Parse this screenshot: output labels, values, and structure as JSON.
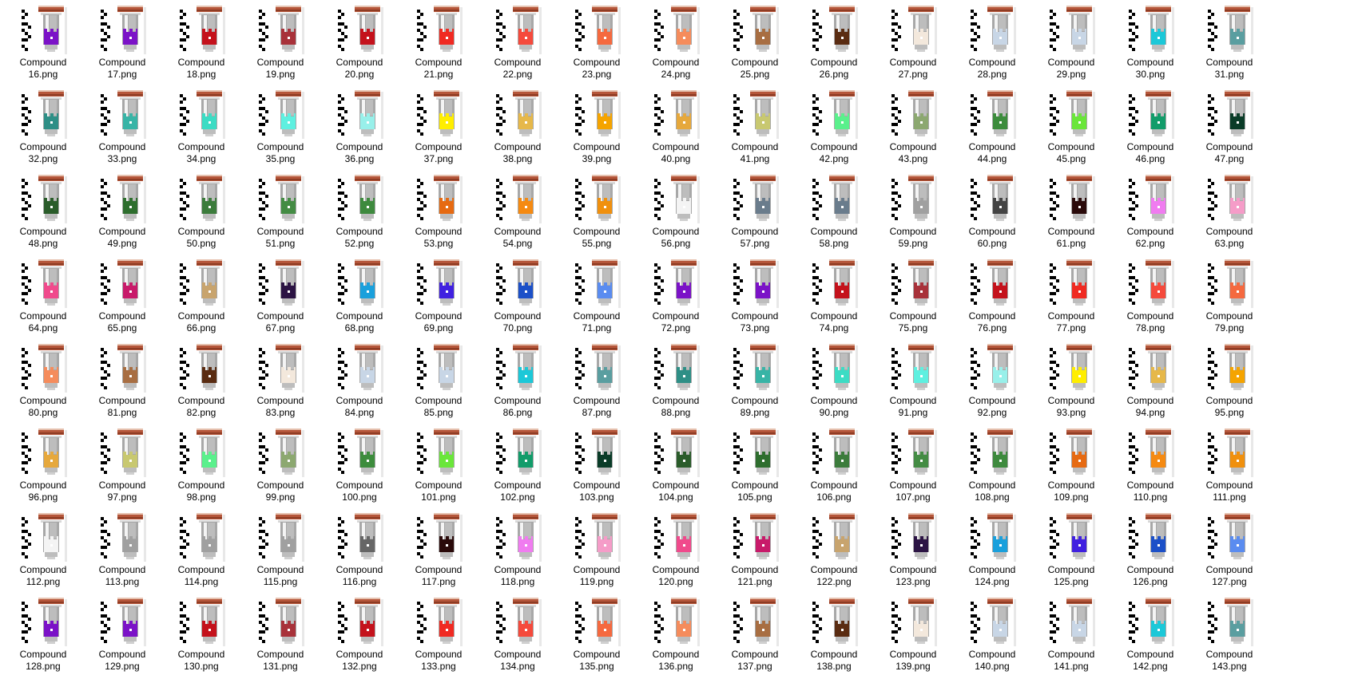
{
  "explorer": {
    "view_mode": "large-icons",
    "file_icon": "potion-vial-icon",
    "files": [
      {
        "line1": "Compound",
        "line2": "16.png",
        "liquid": "#7b12c7"
      },
      {
        "line1": "Compound",
        "line2": "17.png",
        "liquid": "#7b12c7"
      },
      {
        "line1": "Compound",
        "line2": "18.png",
        "liquid": "#c4121c"
      },
      {
        "line1": "Compound",
        "line2": "19.png",
        "liquid": "#a8323a"
      },
      {
        "line1": "Compound",
        "line2": "20.png",
        "liquid": "#c4121c"
      },
      {
        "line1": "Compound",
        "line2": "21.png",
        "liquid": "#f02a22"
      },
      {
        "line1": "Compound",
        "line2": "22.png",
        "liquid": "#f54a3c"
      },
      {
        "line1": "Compound",
        "line2": "23.png",
        "liquid": "#f5693f"
      },
      {
        "line1": "Compound",
        "line2": "24.png",
        "liquid": "#f58c5c"
      },
      {
        "line1": "Compound",
        "line2": "25.png",
        "liquid": "#a86e42"
      },
      {
        "line1": "Compound",
        "line2": "26.png",
        "liquid": "#5a2c12"
      },
      {
        "line1": "Compound",
        "line2": "27.png",
        "liquid": "#f3e8dc"
      },
      {
        "line1": "Compound",
        "line2": "28.png",
        "liquid": "#c8d6e6"
      },
      {
        "line1": "Compound",
        "line2": "29.png",
        "liquid": "#c8d6e6"
      },
      {
        "line1": "Compound",
        "line2": "30.png",
        "liquid": "#1cc8d8"
      },
      {
        "line1": "Compound",
        "line2": "31.png",
        "liquid": "#5a9ea0"
      },
      {
        "line1": "Compound",
        "line2": "32.png",
        "liquid": "#2e8f86"
      },
      {
        "line1": "Compound",
        "line2": "33.png",
        "liquid": "#38b4a6"
      },
      {
        "line1": "Compound",
        "line2": "34.png",
        "liquid": "#3cdcc4"
      },
      {
        "line1": "Compound",
        "line2": "35.png",
        "liquid": "#5ef0e0"
      },
      {
        "line1": "Compound",
        "line2": "36.png",
        "liquid": "#98f0ea"
      },
      {
        "line1": "Compound",
        "line2": "37.png",
        "liquid": "#ffee00"
      },
      {
        "line1": "Compound",
        "line2": "38.png",
        "liquid": "#e6b84a"
      },
      {
        "line1": "Compound",
        "line2": "39.png",
        "liquid": "#f5a400"
      },
      {
        "line1": "Compound",
        "line2": "40.png",
        "liquid": "#e6a83c"
      },
      {
        "line1": "Compound",
        "line2": "41.png",
        "liquid": "#c8c870"
      },
      {
        "line1": "Compound",
        "line2": "42.png",
        "liquid": "#5af08c"
      },
      {
        "line1": "Compound",
        "line2": "43.png",
        "liquid": "#8ca870"
      },
      {
        "line1": "Compound",
        "line2": "44.png",
        "liquid": "#3c8c3c"
      },
      {
        "line1": "Compound",
        "line2": "45.png",
        "liquid": "#6ae63a"
      },
      {
        "line1": "Compound",
        "line2": "46.png",
        "liquid": "#129c6a"
      },
      {
        "line1": "Compound",
        "line2": "47.png",
        "liquid": "#0a3c28"
      },
      {
        "line1": "Compound",
        "line2": "48.png",
        "liquid": "#2a5c2a"
      },
      {
        "line1": "Compound",
        "line2": "49.png",
        "liquid": "#2e6e2e"
      },
      {
        "line1": "Compound",
        "line2": "50.png",
        "liquid": "#3c7c3c"
      },
      {
        "line1": "Compound",
        "line2": "51.png",
        "liquid": "#448c44"
      },
      {
        "line1": "Compound",
        "line2": "52.png",
        "liquid": "#3e8a3e"
      },
      {
        "line1": "Compound",
        "line2": "53.png",
        "liquid": "#e66a12"
      },
      {
        "line1": "Compound",
        "line2": "54.png",
        "liquid": "#f58a12"
      },
      {
        "line1": "Compound",
        "line2": "55.png",
        "liquid": "#f0900e"
      },
      {
        "line1": "Compound",
        "line2": "56.png",
        "liquid": "#f4f4f4"
      },
      {
        "line1": "Compound",
        "line2": "57.png",
        "liquid": "#6a7c8c"
      },
      {
        "line1": "Compound",
        "line2": "58.png",
        "liquid": "#6a7c8c"
      },
      {
        "line1": "Compound",
        "line2": "59.png",
        "liquid": "#a0a0a0"
      },
      {
        "line1": "Compound",
        "line2": "60.png",
        "liquid": "#444444"
      },
      {
        "line1": "Compound",
        "line2": "61.png",
        "liquid": "#2a0a0a"
      },
      {
        "line1": "Compound",
        "line2": "62.png",
        "liquid": "#f07cf0"
      },
      {
        "line1": "Compound",
        "line2": "63.png",
        "liquid": "#f59cc8"
      },
      {
        "line1": "Compound",
        "line2": "64.png",
        "liquid": "#f04a8c"
      },
      {
        "line1": "Compound",
        "line2": "65.png",
        "liquid": "#c81a6a"
      },
      {
        "line1": "Compound",
        "line2": "66.png",
        "liquid": "#c8a46e"
      },
      {
        "line1": "Compound",
        "line2": "67.png",
        "liquid": "#2c1444"
      },
      {
        "line1": "Compound",
        "line2": "68.png",
        "liquid": "#1aa0dc"
      },
      {
        "line1": "Compound",
        "line2": "69.png",
        "liquid": "#4020e0"
      },
      {
        "line1": "Compound",
        "line2": "70.png",
        "liquid": "#1c50c8"
      },
      {
        "line1": "Compound",
        "line2": "71.png",
        "liquid": "#5a8cf0"
      },
      {
        "line1": "Compound",
        "line2": "72.png",
        "liquid": "#7b12c7"
      },
      {
        "line1": "Compound",
        "line2": "73.png",
        "liquid": "#7b12c7"
      },
      {
        "line1": "Compound",
        "line2": "74.png",
        "liquid": "#c4121c"
      },
      {
        "line1": "Compound",
        "line2": "75.png",
        "liquid": "#a8323a"
      },
      {
        "line1": "Compound",
        "line2": "76.png",
        "liquid": "#c4121c"
      },
      {
        "line1": "Compound",
        "line2": "77.png",
        "liquid": "#f02a22"
      },
      {
        "line1": "Compound",
        "line2": "78.png",
        "liquid": "#f54a3c"
      },
      {
        "line1": "Compound",
        "line2": "79.png",
        "liquid": "#f5693f"
      },
      {
        "line1": "Compound",
        "line2": "80.png",
        "liquid": "#f58c5c"
      },
      {
        "line1": "Compound",
        "line2": "81.png",
        "liquid": "#a86e42"
      },
      {
        "line1": "Compound",
        "line2": "82.png",
        "liquid": "#5a2c12"
      },
      {
        "line1": "Compound",
        "line2": "83.png",
        "liquid": "#f3e8dc"
      },
      {
        "line1": "Compound",
        "line2": "84.png",
        "liquid": "#c8d6e6"
      },
      {
        "line1": "Compound",
        "line2": "85.png",
        "liquid": "#c8d6e6"
      },
      {
        "line1": "Compound",
        "line2": "86.png",
        "liquid": "#1cc8d8"
      },
      {
        "line1": "Compound",
        "line2": "87.png",
        "liquid": "#5a9ea0"
      },
      {
        "line1": "Compound",
        "line2": "88.png",
        "liquid": "#2e8f86"
      },
      {
        "line1": "Compound",
        "line2": "89.png",
        "liquid": "#38b4a6"
      },
      {
        "line1": "Compound",
        "line2": "90.png",
        "liquid": "#3cdcc4"
      },
      {
        "line1": "Compound",
        "line2": "91.png",
        "liquid": "#5ef0e0"
      },
      {
        "line1": "Compound",
        "line2": "92.png",
        "liquid": "#98f0ea"
      },
      {
        "line1": "Compound",
        "line2": "93.png",
        "liquid": "#ffee00"
      },
      {
        "line1": "Compound",
        "line2": "94.png",
        "liquid": "#e6b84a"
      },
      {
        "line1": "Compound",
        "line2": "95.png",
        "liquid": "#f5a400"
      },
      {
        "line1": "Compound",
        "line2": "96.png",
        "liquid": "#e6a83c"
      },
      {
        "line1": "Compound",
        "line2": "97.png",
        "liquid": "#c8c870"
      },
      {
        "line1": "Compound",
        "line2": "98.png",
        "liquid": "#5af08c"
      },
      {
        "line1": "Compound",
        "line2": "99.png",
        "liquid": "#8ca870"
      },
      {
        "line1": "Compound",
        "line2": "100.png",
        "liquid": "#3c8c3c"
      },
      {
        "line1": "Compound",
        "line2": "101.png",
        "liquid": "#6ae63a"
      },
      {
        "line1": "Compound",
        "line2": "102.png",
        "liquid": "#129c6a"
      },
      {
        "line1": "Compound",
        "line2": "103.png",
        "liquid": "#0a3c28"
      },
      {
        "line1": "Compound",
        "line2": "104.png",
        "liquid": "#2a5c2a"
      },
      {
        "line1": "Compound",
        "line2": "105.png",
        "liquid": "#2e6e2e"
      },
      {
        "line1": "Compound",
        "line2": "106.png",
        "liquid": "#3c7c3c"
      },
      {
        "line1": "Compound",
        "line2": "107.png",
        "liquid": "#448c44"
      },
      {
        "line1": "Compound",
        "line2": "108.png",
        "liquid": "#3e8a3e"
      },
      {
        "line1": "Compound",
        "line2": "109.png",
        "liquid": "#e66a12"
      },
      {
        "line1": "Compound",
        "line2": "110.png",
        "liquid": "#f58a12"
      },
      {
        "line1": "Compound",
        "line2": "111.png",
        "liquid": "#f0900e"
      },
      {
        "line1": "Compound",
        "line2": "112.png",
        "liquid": "#f4f4f4"
      },
      {
        "line1": "Compound",
        "line2": "113.png",
        "liquid": "#a0a0a0"
      },
      {
        "line1": "Compound",
        "line2": "114.png",
        "liquid": "#a0a0a0"
      },
      {
        "line1": "Compound",
        "line2": "115.png",
        "liquid": "#a0a0a0"
      },
      {
        "line1": "Compound",
        "line2": "116.png",
        "liquid": "#666666"
      },
      {
        "line1": "Compound",
        "line2": "117.png",
        "liquid": "#2a0a0a"
      },
      {
        "line1": "Compound",
        "line2": "118.png",
        "liquid": "#f07cf0"
      },
      {
        "line1": "Compound",
        "line2": "119.png",
        "liquid": "#f59cc8"
      },
      {
        "line1": "Compound",
        "line2": "120.png",
        "liquid": "#f04a8c"
      },
      {
        "line1": "Compound",
        "line2": "121.png",
        "liquid": "#c81a6a"
      },
      {
        "line1": "Compound",
        "line2": "122.png",
        "liquid": "#c8a46e"
      },
      {
        "line1": "Compound",
        "line2": "123.png",
        "liquid": "#2c1444"
      },
      {
        "line1": "Compound",
        "line2": "124.png",
        "liquid": "#1aa0dc"
      },
      {
        "line1": "Compound",
        "line2": "125.png",
        "liquid": "#4020e0"
      },
      {
        "line1": "Compound",
        "line2": "126.png",
        "liquid": "#1c50c8"
      },
      {
        "line1": "Compound",
        "line2": "127.png",
        "liquid": "#5a8cf0"
      },
      {
        "line1": "Compound",
        "line2": "128.png",
        "liquid": "#7b12c7"
      },
      {
        "line1": "Compound",
        "line2": "129.png",
        "liquid": "#7b12c7"
      },
      {
        "line1": "Compound",
        "line2": "130.png",
        "liquid": "#c4121c"
      },
      {
        "line1": "Compound",
        "line2": "131.png",
        "liquid": "#a8323a"
      },
      {
        "line1": "Compound",
        "line2": "132.png",
        "liquid": "#c4121c"
      },
      {
        "line1": "Compound",
        "line2": "133.png",
        "liquid": "#f02a22"
      },
      {
        "line1": "Compound",
        "line2": "134.png",
        "liquid": "#f54a3c"
      },
      {
        "line1": "Compound",
        "line2": "135.png",
        "liquid": "#f5693f"
      },
      {
        "line1": "Compound",
        "line2": "136.png",
        "liquid": "#f58c5c"
      },
      {
        "line1": "Compound",
        "line2": "137.png",
        "liquid": "#a86e42"
      },
      {
        "line1": "Compound",
        "line2": "138.png",
        "liquid": "#5a2c12"
      },
      {
        "line1": "Compound",
        "line2": "139.png",
        "liquid": "#f3e8dc"
      },
      {
        "line1": "Compound",
        "line2": "140.png",
        "liquid": "#c8d6e6"
      },
      {
        "line1": "Compound",
        "line2": "141.png",
        "liquid": "#c8d6e6"
      },
      {
        "line1": "Compound",
        "line2": "142.png",
        "liquid": "#1cc8d8"
      },
      {
        "line1": "Compound",
        "line2": "143.png",
        "liquid": "#5a9ea0"
      }
    ]
  }
}
